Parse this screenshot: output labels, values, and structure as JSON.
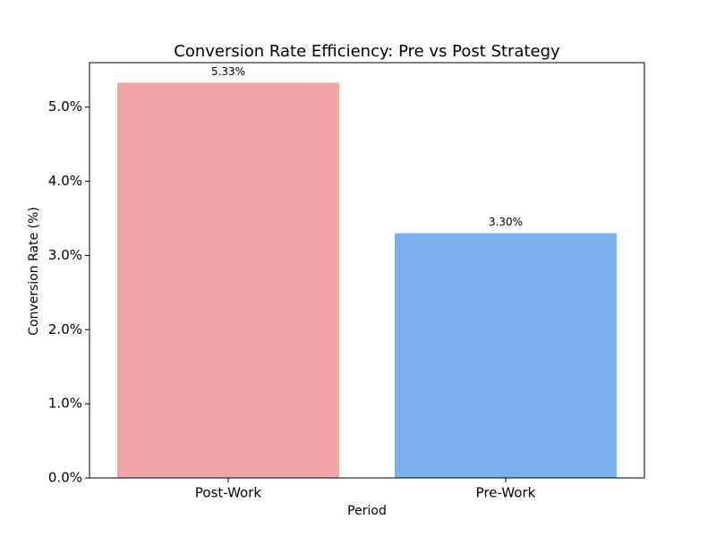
{
  "chart_data": {
    "type": "bar",
    "title": "Conversion Rate Efficiency: Pre vs Post Strategy",
    "xlabel": "Period",
    "ylabel": "Conversion Rate (%)",
    "categories": [
      "Post-Work",
      "Pre-Work"
    ],
    "values": [
      5.33,
      3.3
    ],
    "value_labels": [
      "5.33%",
      "3.30%"
    ],
    "colors": [
      "#f0a6a6",
      "#79b2ec"
    ],
    "ylim": [
      0,
      5.6
    ],
    "yticks": [
      {
        "value": 0,
        "label": "0.0%"
      },
      {
        "value": 1,
        "label": "1.0%"
      },
      {
        "value": 2,
        "label": "2.0%"
      },
      {
        "value": 3,
        "label": "3.0%"
      },
      {
        "value": 4,
        "label": "4.0%"
      },
      {
        "value": 5,
        "label": "5.0%"
      }
    ],
    "grid": false
  }
}
